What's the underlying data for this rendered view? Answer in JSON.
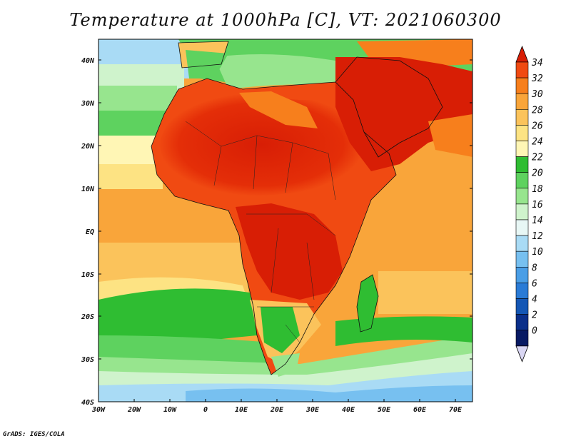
{
  "title": "Temperature at 1000hPa [C], VT: 2021060300",
  "credit": "GrADS: IGES/COLA",
  "map": {
    "lat_labels": [
      "40N",
      "30N",
      "20N",
      "10N",
      "EQ",
      "10S",
      "20S",
      "30S",
      "40S"
    ],
    "lon_labels": [
      "30W",
      "20W",
      "10W",
      "0",
      "10E",
      "20E",
      "30E",
      "40E",
      "50E",
      "60E",
      "70E"
    ]
  },
  "colorbar": {
    "levels": [
      "34",
      "32",
      "30",
      "28",
      "26",
      "24",
      "22",
      "20",
      "18",
      "16",
      "14",
      "12",
      "10",
      "8",
      "6",
      "4",
      "2",
      "0"
    ],
    "colors": [
      "#d81e05",
      "#f04a12",
      "#f77f1c",
      "#f9a53a",
      "#fbc35b",
      "#fde383",
      "#fff6b5",
      "#2fbd32",
      "#5ed25f",
      "#97e58e",
      "#cff3cc",
      "#e8f7f5",
      "#a9dbf5",
      "#77c0f0",
      "#4a9ee6",
      "#2a7bd6",
      "#1457b5",
      "#0a2f8a",
      "#081a63",
      "#d9d6f3"
    ]
  },
  "legend_colors": {
    "hot": "#d81e05",
    "warm": "#f77f1c",
    "mild": "#fbc35b",
    "green": "#2fbd32",
    "cool": "#a9dbf5",
    "cold": "#4a9ee6"
  }
}
